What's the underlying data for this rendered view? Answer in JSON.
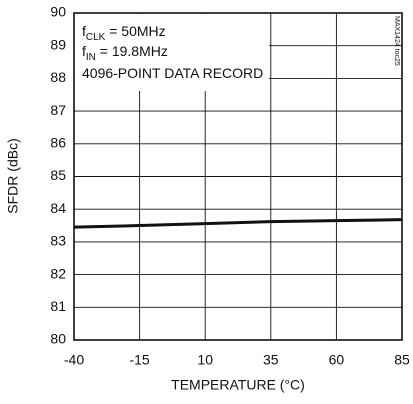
{
  "chart_data": {
    "type": "line",
    "x_label": "TEMPERATURE (°C)",
    "y_label": "SFDR (dBc)",
    "annotations": [
      [
        "f",
        "CLK",
        " = 50MHz"
      ],
      [
        "f",
        "IN",
        " = 19.8MHz"
      ],
      [
        "4096-POINT DATA RECORD"
      ]
    ],
    "side_label": "MAX1424 toc25",
    "x": [
      -40,
      -15,
      10,
      35,
      60,
      85
    ],
    "values": [
      83.45,
      83.5,
      83.56,
      83.62,
      83.65,
      83.68
    ],
    "color": "#111111",
    "xlim": [
      -40,
      85
    ],
    "xticks": [
      -40,
      -15,
      10,
      35,
      60,
      85
    ],
    "ylim": [
      80,
      90
    ],
    "yticks": [
      80,
      81,
      82,
      83,
      84,
      85,
      86,
      87,
      88,
      89,
      90
    ],
    "grid": true
  }
}
